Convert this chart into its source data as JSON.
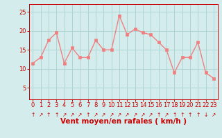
{
  "x": [
    0,
    1,
    2,
    3,
    4,
    5,
    6,
    7,
    8,
    9,
    10,
    11,
    12,
    13,
    14,
    15,
    16,
    17,
    18,
    19,
    20,
    21,
    22,
    23
  ],
  "y": [
    11.5,
    13,
    17.5,
    19.5,
    11.5,
    15.5,
    13,
    13,
    17.5,
    15,
    15,
    24,
    19,
    20.5,
    19.5,
    19,
    17,
    15,
    9,
    13,
    13,
    17,
    9,
    7.5
  ],
  "line_color": "#f08080",
  "marker_color": "#f08080",
  "bg_color": "#d4ecec",
  "grid_color": "#aed4d4",
  "axis_label_color": "#cc0000",
  "tick_color": "#cc0000",
  "xlabel": "Vent moyen/en rafales ( km/h )",
  "ylim": [
    2,
    27
  ],
  "xlim": [
    -0.5,
    23.5
  ],
  "yticks": [
    5,
    10,
    15,
    20,
    25
  ],
  "xticks": [
    0,
    1,
    2,
    3,
    4,
    5,
    6,
    7,
    8,
    9,
    10,
    11,
    12,
    13,
    14,
    15,
    16,
    17,
    18,
    19,
    20,
    21,
    22,
    23
  ],
  "arrow_symbols": [
    "↑",
    "↗",
    "↑",
    "↑",
    "↗",
    "↗",
    "↗",
    "↑",
    "↗",
    "↗",
    "↗",
    "↗",
    "↗",
    "↗",
    "↗",
    "↗",
    "↑",
    "↗",
    "↑",
    "↑",
    "↑",
    "↑",
    "↓",
    "↗"
  ],
  "font_size": 6,
  "label_font_size": 7.5
}
